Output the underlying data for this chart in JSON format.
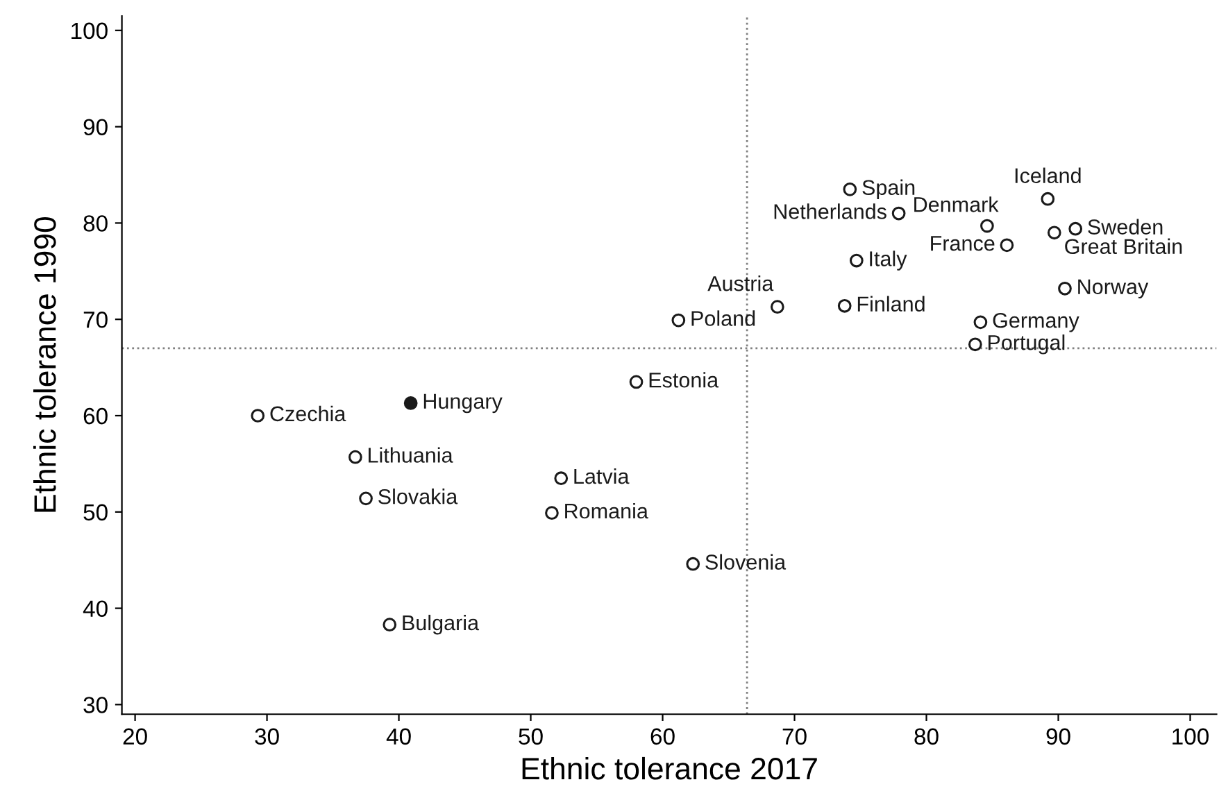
{
  "chart_data": {
    "type": "scatter",
    "xlabel": "Ethnic tolerance 2017",
    "ylabel": "Ethnic tolerance 1990",
    "x": [
      29.3,
      40.9,
      36.7,
      37.5,
      39.3,
      52.3,
      51.6,
      62.3,
      58.0,
      61.2,
      68.7,
      73.8,
      74.7,
      74.2,
      77.9,
      84.6,
      86.1,
      89.2,
      91.3,
      89.7,
      90.5,
      84.1,
      83.7
    ],
    "values": [
      60.0,
      61.3,
      55.7,
      51.4,
      38.3,
      53.5,
      49.9,
      44.6,
      63.5,
      69.9,
      71.3,
      71.4,
      76.1,
      83.5,
      81.0,
      79.7,
      77.7,
      82.5,
      79.4,
      79.0,
      73.2,
      69.7,
      67.4
    ],
    "colors": [
      "#ffffff",
      "#1a1a1a",
      "#ffffff",
      "#ffffff",
      "#ffffff",
      "#ffffff",
      "#ffffff",
      "#ffffff",
      "#ffffff",
      "#ffffff",
      "#ffffff",
      "#ffffff",
      "#ffffff",
      "#ffffff",
      "#ffffff",
      "#ffffff",
      "#ffffff",
      "#ffffff",
      "#ffffff",
      "#ffffff",
      "#ffffff",
      "#ffffff",
      "#ffffff"
    ],
    "marker": "circle",
    "annotations": [
      {
        "text": "Czechia",
        "x": 29.3,
        "y": 60.0
      },
      {
        "text": "Hungary",
        "x": 40.9,
        "y": 61.3
      },
      {
        "text": "Lithuania",
        "x": 36.7,
        "y": 55.7
      },
      {
        "text": "Slovakia",
        "x": 37.5,
        "y": 51.4
      },
      {
        "text": "Bulgaria",
        "x": 39.3,
        "y": 38.3
      },
      {
        "text": "Latvia",
        "x": 52.3,
        "y": 53.5
      },
      {
        "text": "Romania",
        "x": 51.6,
        "y": 49.9
      },
      {
        "text": "Slovenia",
        "x": 62.3,
        "y": 44.6
      },
      {
        "text": "Estonia",
        "x": 58.0,
        "y": 63.5
      },
      {
        "text": "Poland",
        "x": 61.2,
        "y": 69.9
      },
      {
        "text": "Austria",
        "x": 68.7,
        "y": 71.3
      },
      {
        "text": "Finland",
        "x": 73.8,
        "y": 71.4
      },
      {
        "text": "Italy",
        "x": 74.7,
        "y": 76.1
      },
      {
        "text": "Spain",
        "x": 74.2,
        "y": 83.5
      },
      {
        "text": "Netherlands",
        "x": 77.9,
        "y": 81.0
      },
      {
        "text": "Denmark",
        "x": 84.6,
        "y": 79.7
      },
      {
        "text": "France",
        "x": 86.1,
        "y": 77.7
      },
      {
        "text": "Iceland",
        "x": 89.2,
        "y": 82.5
      },
      {
        "text": "Sweden",
        "x": 91.3,
        "y": 79.4
      },
      {
        "text": "Great Britain",
        "x": 89.7,
        "y": 79.0
      },
      {
        "text": "Norway",
        "x": 90.5,
        "y": 73.2
      },
      {
        "text": "Germany",
        "x": 84.1,
        "y": 69.7
      },
      {
        "text": "Portugal",
        "x": 83.7,
        "y": 67.4
      }
    ],
    "ref_lines": [
      {
        "axis": "x",
        "value": 66.4,
        "line_style": "dotted",
        "color": "#808080"
      },
      {
        "axis": "y",
        "value": 67.0,
        "line_style": "dotted",
        "color": "#808080"
      }
    ],
    "xlim": [
      19,
      102
    ],
    "ylim": [
      29,
      101.5
    ],
    "xticks": [
      20,
      30,
      40,
      50,
      60,
      70,
      80,
      90,
      100
    ],
    "yticks": [
      30,
      40,
      50,
      60,
      70,
      80,
      90,
      100
    ],
    "grid": false,
    "legend": false
  }
}
